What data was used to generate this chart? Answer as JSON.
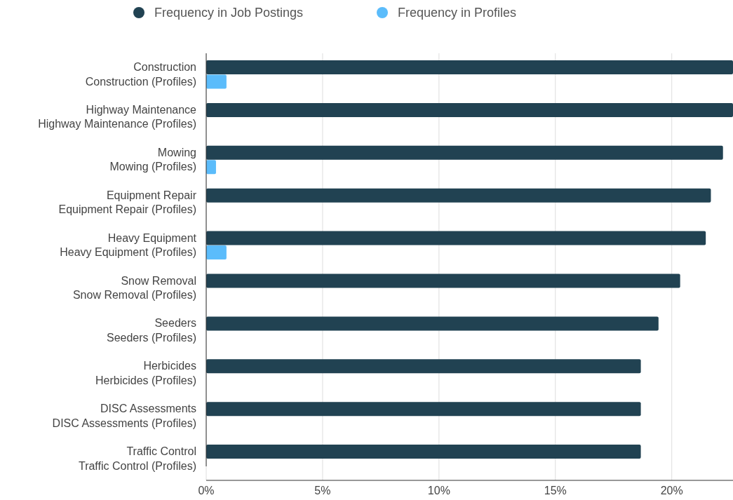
{
  "chart_data": {
    "type": "bar",
    "orientation": "horizontal",
    "categories": [
      "Construction",
      "Construction (Profiles)",
      "Highway Maintenance",
      "Highway Maintenance (Profiles)",
      "Mowing",
      "Mowing (Profiles)",
      "Equipment Repair",
      "Equipment Repair (Profiles)",
      "Heavy Equipment",
      "Heavy Equipment (Profiles)",
      "Snow Removal",
      "Snow Removal (Profiles)",
      "Seeders",
      "Seeders (Profiles)",
      "Herbicides",
      "Herbicides (Profiles)",
      "DISC Assessments",
      "DISC Assessments (Profiles)",
      "Traffic Control",
      "Traffic Control (Profiles)"
    ],
    "series": [
      {
        "name": "Frequency in Job Postings",
        "color": "#214252",
        "values": [
          22.63,
          null,
          22.63,
          null,
          22.2,
          null,
          21.68,
          null,
          21.46,
          null,
          20.36,
          null,
          19.43,
          null,
          18.67,
          null,
          18.67,
          null,
          18.67,
          null
        ]
      },
      {
        "name": "Frequency in Profiles",
        "color": "#5bbcfb",
        "values": [
          null,
          0.87,
          null,
          0,
          null,
          0.42,
          null,
          0,
          null,
          0.87,
          null,
          0,
          null,
          0,
          null,
          0,
          null,
          0,
          null,
          0
        ]
      }
    ],
    "xlim": [
      0,
      22.63
    ],
    "xticks": [
      {
        "value": 0,
        "label": "0%"
      },
      {
        "value": 5,
        "label": "5%"
      },
      {
        "value": 10,
        "label": "10%"
      },
      {
        "value": 15,
        "label": "15%"
      },
      {
        "value": 20,
        "label": "20%"
      }
    ],
    "grid": "x",
    "legend": "top"
  }
}
